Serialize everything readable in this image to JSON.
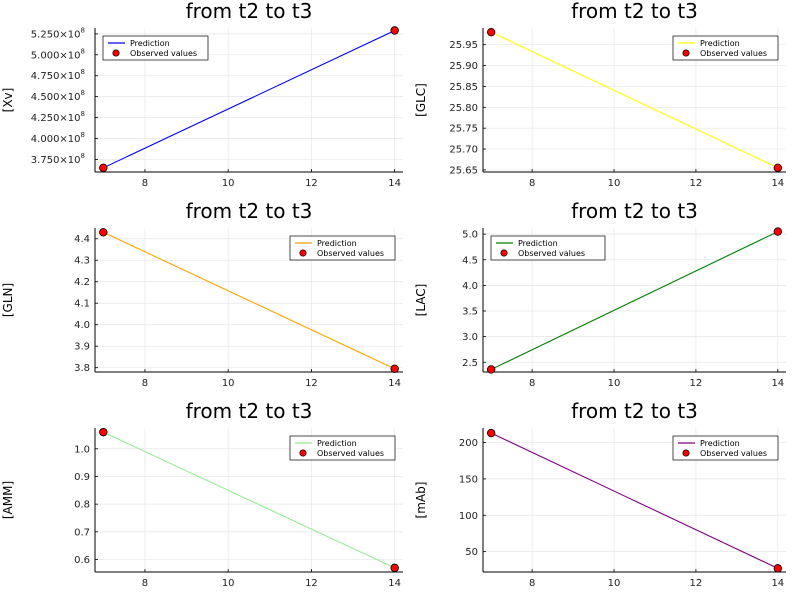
{
  "chart_data": [
    {
      "type": "line",
      "title": "from t2 to t3",
      "xlabel": "",
      "ylabel": "[Xv]",
      "x_ticks": [
        "8",
        "10",
        "12",
        "14"
      ],
      "y_ticks": [
        "3.750×10",
        "4.000×10",
        "4.250×10",
        "4.500×10",
        "4.750×10",
        "5.000×10",
        "5.250×10"
      ],
      "y_tick_exponent": "8",
      "xlim": [
        6.8,
        14.2
      ],
      "ylim": [
        360000000,
        532000000
      ],
      "y_tick_values": [
        375000000,
        400000000,
        425000000,
        450000000,
        475000000,
        500000000,
        525000000
      ],
      "legend_position": "top-left",
      "grid": true,
      "series": [
        {
          "name": "Prediction",
          "kind": "line",
          "color": "#0000ff",
          "x": [
            7,
            14
          ],
          "y": [
            365000000,
            529000000
          ]
        },
        {
          "name": "Observed values",
          "kind": "scatter",
          "color": "#ff0000",
          "x": [
            7,
            14
          ],
          "y": [
            365000000,
            529000000
          ]
        }
      ]
    },
    {
      "type": "line",
      "title": "from t2 to t3",
      "xlabel": "",
      "ylabel": "[GLC]",
      "x_ticks": [
        "8",
        "10",
        "12",
        "14"
      ],
      "y_ticks": [
        "25.65",
        "25.70",
        "25.75",
        "25.80",
        "25.85",
        "25.90",
        "25.95"
      ],
      "xlim": [
        6.8,
        14.2
      ],
      "ylim": [
        25.645,
        25.99
      ],
      "y_tick_values": [
        25.65,
        25.7,
        25.75,
        25.8,
        25.85,
        25.9,
        25.95
      ],
      "legend_position": "top-right",
      "grid": true,
      "series": [
        {
          "name": "Prediction",
          "kind": "line",
          "color": "#ffff00",
          "x": [
            7,
            14
          ],
          "y": [
            25.98,
            25.655
          ]
        },
        {
          "name": "Observed values",
          "kind": "scatter",
          "color": "#ff0000",
          "x": [
            7,
            14
          ],
          "y": [
            25.98,
            25.655
          ]
        }
      ]
    },
    {
      "type": "line",
      "title": "from t2 to t3",
      "xlabel": "",
      "ylabel": "[GLN]",
      "x_ticks": [
        "8",
        "10",
        "12",
        "14"
      ],
      "y_ticks": [
        "3.8",
        "3.9",
        "4.0",
        "4.1",
        "4.2",
        "4.3",
        "4.4"
      ],
      "xlim": [
        6.8,
        14.2
      ],
      "ylim": [
        3.78,
        4.45
      ],
      "y_tick_values": [
        3.8,
        3.9,
        4.0,
        4.1,
        4.2,
        4.3,
        4.4
      ],
      "legend_position": "top-right",
      "grid": true,
      "series": [
        {
          "name": "Prediction",
          "kind": "line",
          "color": "#ffa500",
          "x": [
            7,
            14
          ],
          "y": [
            4.43,
            3.795
          ]
        },
        {
          "name": "Observed values",
          "kind": "scatter",
          "color": "#ff0000",
          "x": [
            7,
            14
          ],
          "y": [
            4.43,
            3.795
          ]
        }
      ]
    },
    {
      "type": "line",
      "title": "from t2 to t3",
      "xlabel": "",
      "ylabel": "[LAC]",
      "x_ticks": [
        "8",
        "10",
        "12",
        "14"
      ],
      "y_ticks": [
        "2.5",
        "3.0",
        "3.5",
        "4.0",
        "4.5",
        "5.0"
      ],
      "xlim": [
        6.8,
        14.2
      ],
      "ylim": [
        2.31,
        5.12
      ],
      "y_tick_values": [
        2.5,
        3.0,
        3.5,
        4.0,
        4.5,
        5.0
      ],
      "legend_position": "top-left",
      "grid": true,
      "series": [
        {
          "name": "Prediction",
          "kind": "line",
          "color": "#008000",
          "x": [
            7,
            14
          ],
          "y": [
            2.36,
            5.05
          ]
        },
        {
          "name": "Observed values",
          "kind": "scatter",
          "color": "#ff0000",
          "x": [
            7,
            14
          ],
          "y": [
            2.36,
            5.05
          ]
        }
      ]
    },
    {
      "type": "line",
      "title": "from t2 to t3",
      "xlabel": "",
      "ylabel": "[AMM]",
      "x_ticks": [
        "8",
        "10",
        "12",
        "14"
      ],
      "y_ticks": [
        "0.6",
        "0.7",
        "0.8",
        "0.9",
        "1.0"
      ],
      "xlim": [
        6.8,
        14.2
      ],
      "ylim": [
        0.555,
        1.075
      ],
      "y_tick_values": [
        0.6,
        0.7,
        0.8,
        0.9,
        1.0
      ],
      "legend_position": "top-right",
      "grid": true,
      "series": [
        {
          "name": "Prediction",
          "kind": "line",
          "color": "#90ee90",
          "x": [
            7,
            14
          ],
          "y": [
            1.06,
            0.57
          ]
        },
        {
          "name": "Observed values",
          "kind": "scatter",
          "color": "#ff0000",
          "x": [
            7,
            14
          ],
          "y": [
            1.06,
            0.57
          ]
        }
      ]
    },
    {
      "type": "line",
      "title": "from t2 to t3",
      "xlabel": "",
      "ylabel": "[mAb]",
      "x_ticks": [
        "8",
        "10",
        "12",
        "14"
      ],
      "y_ticks": [
        "50",
        "100",
        "150",
        "200"
      ],
      "xlim": [
        6.8,
        14.2
      ],
      "ylim": [
        22,
        220
      ],
      "y_tick_values": [
        50,
        100,
        150,
        200
      ],
      "legend_position": "top-right",
      "grid": true,
      "series": [
        {
          "name": "Prediction",
          "kind": "line",
          "color": "#800080",
          "x": [
            7,
            14
          ],
          "y": [
            213,
            27
          ]
        },
        {
          "name": "Observed values",
          "kind": "scatter",
          "color": "#ff0000",
          "x": [
            7,
            14
          ],
          "y": [
            213,
            27
          ]
        }
      ]
    }
  ]
}
